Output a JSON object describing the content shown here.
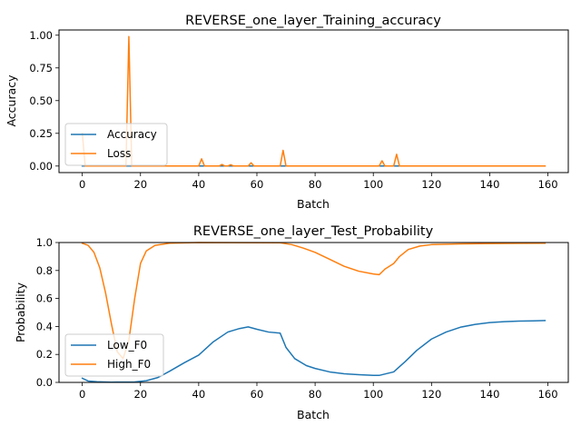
{
  "chart_data": [
    {
      "type": "line",
      "title": "REVERSE_one_layer_Training_accuracy",
      "xlabel": "Batch",
      "ylabel": "Accuracy",
      "xlim": [
        -8,
        167
      ],
      "ylim": [
        -0.05,
        1.04
      ],
      "xticks": [
        0,
        20,
        40,
        60,
        80,
        100,
        120,
        140,
        160
      ],
      "xtick_labels": [
        "0",
        "20",
        "40",
        "60",
        "80",
        "100",
        "120",
        "140",
        "160"
      ],
      "yticks": [
        0,
        0.25,
        0.5,
        0.75,
        1.0
      ],
      "ytick_labels": [
        "0.00",
        "0.25",
        "0.50",
        "0.75",
        "1.00"
      ],
      "grid": false,
      "legend": "lower-left",
      "series": [
        {
          "name": "Accuracy",
          "color": "#1f77b4",
          "points": [
            [
              0,
              0.0
            ],
            [
              159,
              0.0
            ]
          ]
        },
        {
          "name": "Loss",
          "color": "#ff7f0e",
          "points": [
            [
              0,
              0.25
            ],
            [
              1,
              0.0
            ],
            [
              15,
              0.0
            ],
            [
              16,
              0.99
            ],
            [
              17,
              0.0
            ],
            [
              40,
              0.0
            ],
            [
              41,
              0.055
            ],
            [
              42,
              0.0
            ],
            [
              47,
              0.0
            ],
            [
              48,
              0.012
            ],
            [
              49,
              0.0
            ],
            [
              50,
              0.0
            ],
            [
              51,
              0.01
            ],
            [
              52,
              0.0
            ],
            [
              57,
              0.0
            ],
            [
              58,
              0.025
            ],
            [
              59,
              0.0
            ],
            [
              68,
              0.0
            ],
            [
              69,
              0.12
            ],
            [
              70,
              0.0
            ],
            [
              102,
              0.0
            ],
            [
              103,
              0.04
            ],
            [
              104,
              0.0
            ],
            [
              107,
              0.0
            ],
            [
              108,
              0.09
            ],
            [
              109,
              0.0
            ],
            [
              159,
              0.0
            ]
          ]
        }
      ]
    },
    {
      "type": "line",
      "title": "REVERSE_one_layer_Test_Probability",
      "xlabel": "Batch",
      "ylabel": "Probability",
      "xlim": [
        -8,
        167
      ],
      "ylim": [
        0,
        1.0
      ],
      "xticks": [
        0,
        20,
        40,
        60,
        80,
        100,
        120,
        140,
        160
      ],
      "xtick_labels": [
        "0",
        "20",
        "40",
        "60",
        "80",
        "100",
        "120",
        "140",
        "160"
      ],
      "yticks": [
        0,
        0.2,
        0.4,
        0.6,
        0.8,
        1.0
      ],
      "ytick_labels": [
        "0.0",
        "0.2",
        "0.4",
        "0.6",
        "0.8",
        "1.0"
      ],
      "grid": false,
      "legend": "lower-left",
      "series": [
        {
          "name": "Low_F0",
          "color": "#1f77b4",
          "points": [
            [
              0,
              0.03
            ],
            [
              2,
              0.01
            ],
            [
              5,
              0.005
            ],
            [
              10,
              0.002
            ],
            [
              18,
              0.003
            ],
            [
              22,
              0.012
            ],
            [
              26,
              0.035
            ],
            [
              30,
              0.08
            ],
            [
              35,
              0.14
            ],
            [
              40,
              0.195
            ],
            [
              45,
              0.29
            ],
            [
              50,
              0.36
            ],
            [
              54,
              0.385
            ],
            [
              57,
              0.397
            ],
            [
              60,
              0.38
            ],
            [
              64,
              0.36
            ],
            [
              68,
              0.352
            ],
            [
              70,
              0.25
            ],
            [
              73,
              0.17
            ],
            [
              77,
              0.12
            ],
            [
              80,
              0.1
            ],
            [
              85,
              0.075
            ],
            [
              90,
              0.062
            ],
            [
              95,
              0.055
            ],
            [
              100,
              0.05
            ],
            [
              102,
              0.05
            ],
            [
              107,
              0.075
            ],
            [
              111,
              0.15
            ],
            [
              115,
              0.23
            ],
            [
              120,
              0.31
            ],
            [
              125,
              0.36
            ],
            [
              130,
              0.395
            ],
            [
              135,
              0.415
            ],
            [
              140,
              0.428
            ],
            [
              145,
              0.434
            ],
            [
              150,
              0.438
            ],
            [
              155,
              0.44
            ],
            [
              159,
              0.442
            ]
          ]
        },
        {
          "name": "High_F0",
          "color": "#ff7f0e",
          "points": [
            [
              0,
              0.995
            ],
            [
              2,
              0.98
            ],
            [
              4,
              0.93
            ],
            [
              6,
              0.82
            ],
            [
              8,
              0.64
            ],
            [
              10,
              0.42
            ],
            [
              12,
              0.22
            ],
            [
              14,
              0.17
            ],
            [
              16,
              0.3
            ],
            [
              18,
              0.6
            ],
            [
              20,
              0.85
            ],
            [
              22,
              0.94
            ],
            [
              25,
              0.98
            ],
            [
              30,
              0.995
            ],
            [
              40,
              1.0
            ],
            [
              68,
              0.998
            ],
            [
              72,
              0.985
            ],
            [
              76,
              0.96
            ],
            [
              80,
              0.93
            ],
            [
              85,
              0.88
            ],
            [
              90,
              0.83
            ],
            [
              95,
              0.795
            ],
            [
              100,
              0.775
            ],
            [
              102,
              0.77
            ],
            [
              104,
              0.81
            ],
            [
              107,
              0.85
            ],
            [
              109,
              0.9
            ],
            [
              112,
              0.95
            ],
            [
              116,
              0.975
            ],
            [
              120,
              0.985
            ],
            [
              130,
              0.99
            ],
            [
              140,
              0.993
            ],
            [
              150,
              0.994
            ],
            [
              159,
              0.995
            ]
          ]
        }
      ]
    }
  ]
}
